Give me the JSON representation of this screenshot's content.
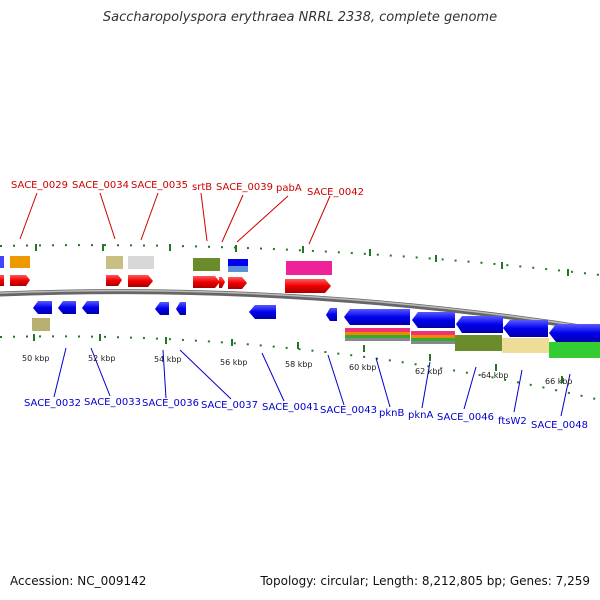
{
  "title": "Saccharopolyspora erythraea NRRL 2338, complete genome",
  "footer": {
    "accession": "Accession: NC_009142",
    "topology": "Topology: circular; Length: 8,212,805 bp; Genes: 7,259"
  },
  "top_labels": [
    "SACE_0029",
    "SACE_0034",
    "SACE_0035",
    "srtB",
    "SACE_0039",
    "pabA",
    "SACE_0042"
  ],
  "bottom_labels": [
    "SACE_0032",
    "SACE_0033",
    "SACE_0036",
    "SACE_0037",
    "SACE_0041",
    "SACE_0043",
    "pknB",
    "pknA",
    "SACE_0046",
    "ftsW2",
    "SACE_0048"
  ],
  "ticks": [
    "50 kbp",
    "52 kbp",
    "54 kbp",
    "56 kbp",
    "58 kbp",
    "60 kbp",
    "62 kbp",
    "64 kbp",
    "66 kbp"
  ],
  "colors": {
    "forward_gene": "#ee0000",
    "reverse_gene": "#0000ee",
    "backbone": "#808080",
    "top_label": "#cc0000",
    "bottom_label": "#0000cc",
    "tick": "#227722"
  }
}
